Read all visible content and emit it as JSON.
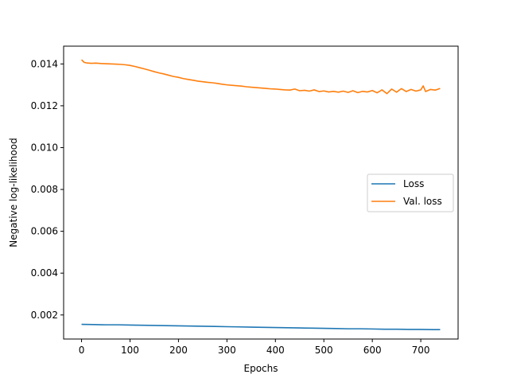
{
  "chart_data": {
    "type": "line",
    "title": "",
    "xlabel": "Epochs",
    "ylabel": "Negative log-likelihood",
    "xlim": [
      -37,
      777
    ],
    "ylim": [
      0.00085,
      0.01485
    ],
    "xticks": [
      0,
      100,
      200,
      300,
      400,
      500,
      600,
      700
    ],
    "xtick_labels": [
      "0",
      "100",
      "200",
      "300",
      "400",
      "500",
      "600",
      "700"
    ],
    "yticks": [
      0.002,
      0.004,
      0.006,
      0.008,
      0.01,
      0.012,
      0.014
    ],
    "ytick_labels": [
      "0.002",
      "0.004",
      "0.006",
      "0.008",
      "0.010",
      "0.012",
      "0.014"
    ],
    "grid": false,
    "legend_position": "center-right",
    "series": [
      {
        "name": "Loss",
        "color": "#1f77b4",
        "x": [
          0,
          25,
          50,
          75,
          100,
          125,
          150,
          175,
          200,
          225,
          250,
          275,
          300,
          325,
          350,
          375,
          400,
          425,
          450,
          475,
          500,
          525,
          550,
          575,
          600,
          625,
          650,
          675,
          700,
          725,
          740
        ],
        "y": [
          0.00155,
          0.00154,
          0.00153,
          0.00153,
          0.00152,
          0.00151,
          0.0015,
          0.00149,
          0.00148,
          0.00147,
          0.00146,
          0.00145,
          0.00144,
          0.00143,
          0.00142,
          0.00141,
          0.0014,
          0.00139,
          0.00138,
          0.00137,
          0.00136,
          0.00135,
          0.00134,
          0.00134,
          0.00133,
          0.00132,
          0.00132,
          0.00131,
          0.00131,
          0.0013,
          0.0013
        ]
      },
      {
        "name": "Val. loss",
        "color": "#ff7f0e",
        "x": [
          0,
          5,
          10,
          20,
          30,
          40,
          50,
          60,
          70,
          80,
          90,
          100,
          110,
          120,
          130,
          140,
          150,
          160,
          170,
          180,
          190,
          200,
          210,
          220,
          230,
          240,
          250,
          260,
          270,
          280,
          290,
          300,
          310,
          320,
          330,
          340,
          350,
          360,
          370,
          380,
          390,
          400,
          410,
          420,
          430,
          440,
          450,
          460,
          470,
          480,
          490,
          500,
          510,
          520,
          530,
          540,
          550,
          560,
          570,
          580,
          590,
          600,
          610,
          620,
          630,
          640,
          650,
          660,
          670,
          680,
          690,
          700,
          705,
          710,
          720,
          730,
          740
        ],
        "y": [
          0.0142,
          0.01408,
          0.01405,
          0.01403,
          0.01404,
          0.01402,
          0.01401,
          0.014,
          0.01399,
          0.01398,
          0.01396,
          0.01393,
          0.01388,
          0.01382,
          0.01376,
          0.0137,
          0.01363,
          0.01357,
          0.01352,
          0.01346,
          0.0134,
          0.01336,
          0.0133,
          0.01326,
          0.01322,
          0.01318,
          0.01315,
          0.01312,
          0.0131,
          0.01307,
          0.01303,
          0.013,
          0.01298,
          0.01296,
          0.01294,
          0.01291,
          0.01289,
          0.01287,
          0.01285,
          0.01283,
          0.01281,
          0.0128,
          0.01278,
          0.01276,
          0.01275,
          0.0128,
          0.01272,
          0.01274,
          0.0127,
          0.01276,
          0.01268,
          0.01271,
          0.01266,
          0.01269,
          0.01265,
          0.0127,
          0.01264,
          0.01272,
          0.01263,
          0.01269,
          0.01266,
          0.01273,
          0.01262,
          0.01276,
          0.01258,
          0.0128,
          0.01265,
          0.01282,
          0.01268,
          0.01278,
          0.0127,
          0.01276,
          0.01295,
          0.01268,
          0.01278,
          0.01275,
          0.01283
        ]
      }
    ]
  }
}
